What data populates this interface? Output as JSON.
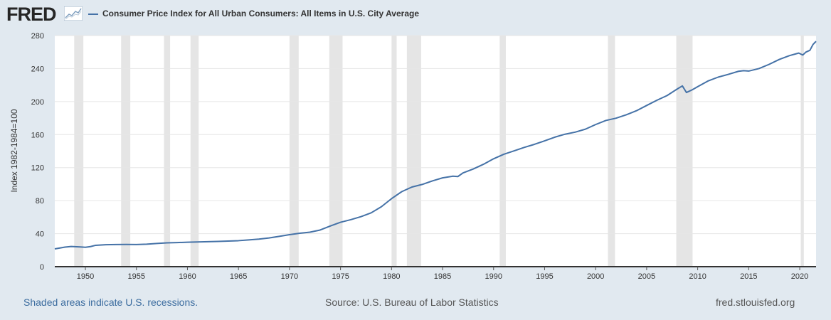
{
  "header": {
    "logo_text": "FRED",
    "legend_title": "Consumer Price Index for All Urban Consumers: All Items in U.S. City Average"
  },
  "footer": {
    "note": "Shaded areas indicate U.S. recessions.",
    "source": "Source: U.S. Bureau of Labor Statistics",
    "site": "fred.stlouisfed.org"
  },
  "colors": {
    "series": "#4572a7",
    "recession": "#e5e5e5",
    "plot_bg": "#ffffff",
    "page_bg": "#e1e9f0"
  },
  "chart_data": {
    "type": "line",
    "title": "Consumer Price Index for All Urban Consumers: All Items in U.S. City Average",
    "ylabel": "Index 1982-1984=100",
    "xlabel": "",
    "xlim": [
      1947.0,
      2021.6
    ],
    "ylim": [
      0,
      280
    ],
    "x_ticks": [
      "1950",
      "1955",
      "1960",
      "1965",
      "1970",
      "1975",
      "1980",
      "1985",
      "1990",
      "1995",
      "2000",
      "2005",
      "2010",
      "2015",
      "2020"
    ],
    "y_ticks": [
      "0",
      "40",
      "80",
      "120",
      "160",
      "200",
      "240",
      "280"
    ],
    "grid": true,
    "legend": "top-left",
    "recessions": [
      [
        1948.9,
        1949.8
      ],
      [
        1953.5,
        1954.4
      ],
      [
        1957.7,
        1958.3
      ],
      [
        1960.3,
        1961.1
      ],
      [
        1970.0,
        1970.9
      ],
      [
        1973.9,
        1975.2
      ],
      [
        1980.0,
        1980.5
      ],
      [
        1981.5,
        1982.9
      ],
      [
        1990.6,
        1991.2
      ],
      [
        2001.2,
        2001.9
      ],
      [
        2007.9,
        2009.5
      ],
      [
        2020.1,
        2020.4
      ]
    ],
    "series": [
      {
        "name": "Consumer Price Index for All Urban Consumers: All Items in U.S. City Average",
        "x": [
          1947.0,
          1948.0,
          1948.6,
          1949.5,
          1950.0,
          1950.5,
          1951.0,
          1952.0,
          1953.0,
          1954.0,
          1955.0,
          1956.0,
          1957.0,
          1958.0,
          1959.0,
          1960.0,
          1961.0,
          1962.0,
          1963.0,
          1964.0,
          1965.0,
          1966.0,
          1967.0,
          1968.0,
          1969.0,
          1970.0,
          1971.0,
          1972.0,
          1973.0,
          1974.0,
          1975.0,
          1976.0,
          1977.0,
          1978.0,
          1979.0,
          1980.0,
          1981.0,
          1982.0,
          1983.0,
          1984.0,
          1985.0,
          1986.0,
          1986.5,
          1987.0,
          1988.0,
          1989.0,
          1990.0,
          1991.0,
          1992.0,
          1993.0,
          1994.0,
          1995.0,
          1996.0,
          1997.0,
          1998.0,
          1999.0,
          2000.0,
          2001.0,
          2002.0,
          2003.0,
          2004.0,
          2005.0,
          2006.0,
          2007.0,
          2008.0,
          2008.5,
          2008.9,
          2009.5,
          2010.0,
          2011.0,
          2012.0,
          2013.0,
          2014.0,
          2014.5,
          2015.0,
          2016.0,
          2017.0,
          2018.0,
          2019.0,
          2019.9,
          2020.3,
          2020.6,
          2021.0,
          2021.3,
          2021.6
        ],
        "values": [
          21.5,
          23.7,
          24.4,
          23.9,
          23.5,
          24.3,
          25.9,
          26.6,
          26.8,
          26.9,
          26.8,
          27.2,
          28.1,
          28.9,
          29.2,
          29.6,
          29.9,
          30.3,
          30.6,
          31.0,
          31.5,
          32.4,
          33.4,
          34.8,
          36.7,
          38.8,
          40.5,
          41.8,
          44.4,
          49.3,
          53.8,
          56.9,
          60.6,
          65.2,
          72.6,
          82.4,
          90.9,
          96.5,
          99.6,
          103.9,
          107.6,
          109.6,
          109.2,
          113.6,
          118.3,
          124.0,
          130.7,
          136.2,
          140.3,
          144.5,
          148.2,
          152.4,
          156.9,
          160.5,
          163.0,
          166.6,
          172.2,
          177.1,
          179.9,
          184.0,
          188.9,
          195.3,
          201.6,
          207.3,
          215.3,
          219.0,
          211.0,
          214.5,
          218.1,
          224.9,
          229.6,
          233.0,
          236.7,
          237.5,
          237.0,
          240.0,
          245.1,
          251.1,
          255.7,
          258.8,
          256.4,
          259.9,
          262.2,
          269.2,
          273.0
        ]
      }
    ]
  }
}
